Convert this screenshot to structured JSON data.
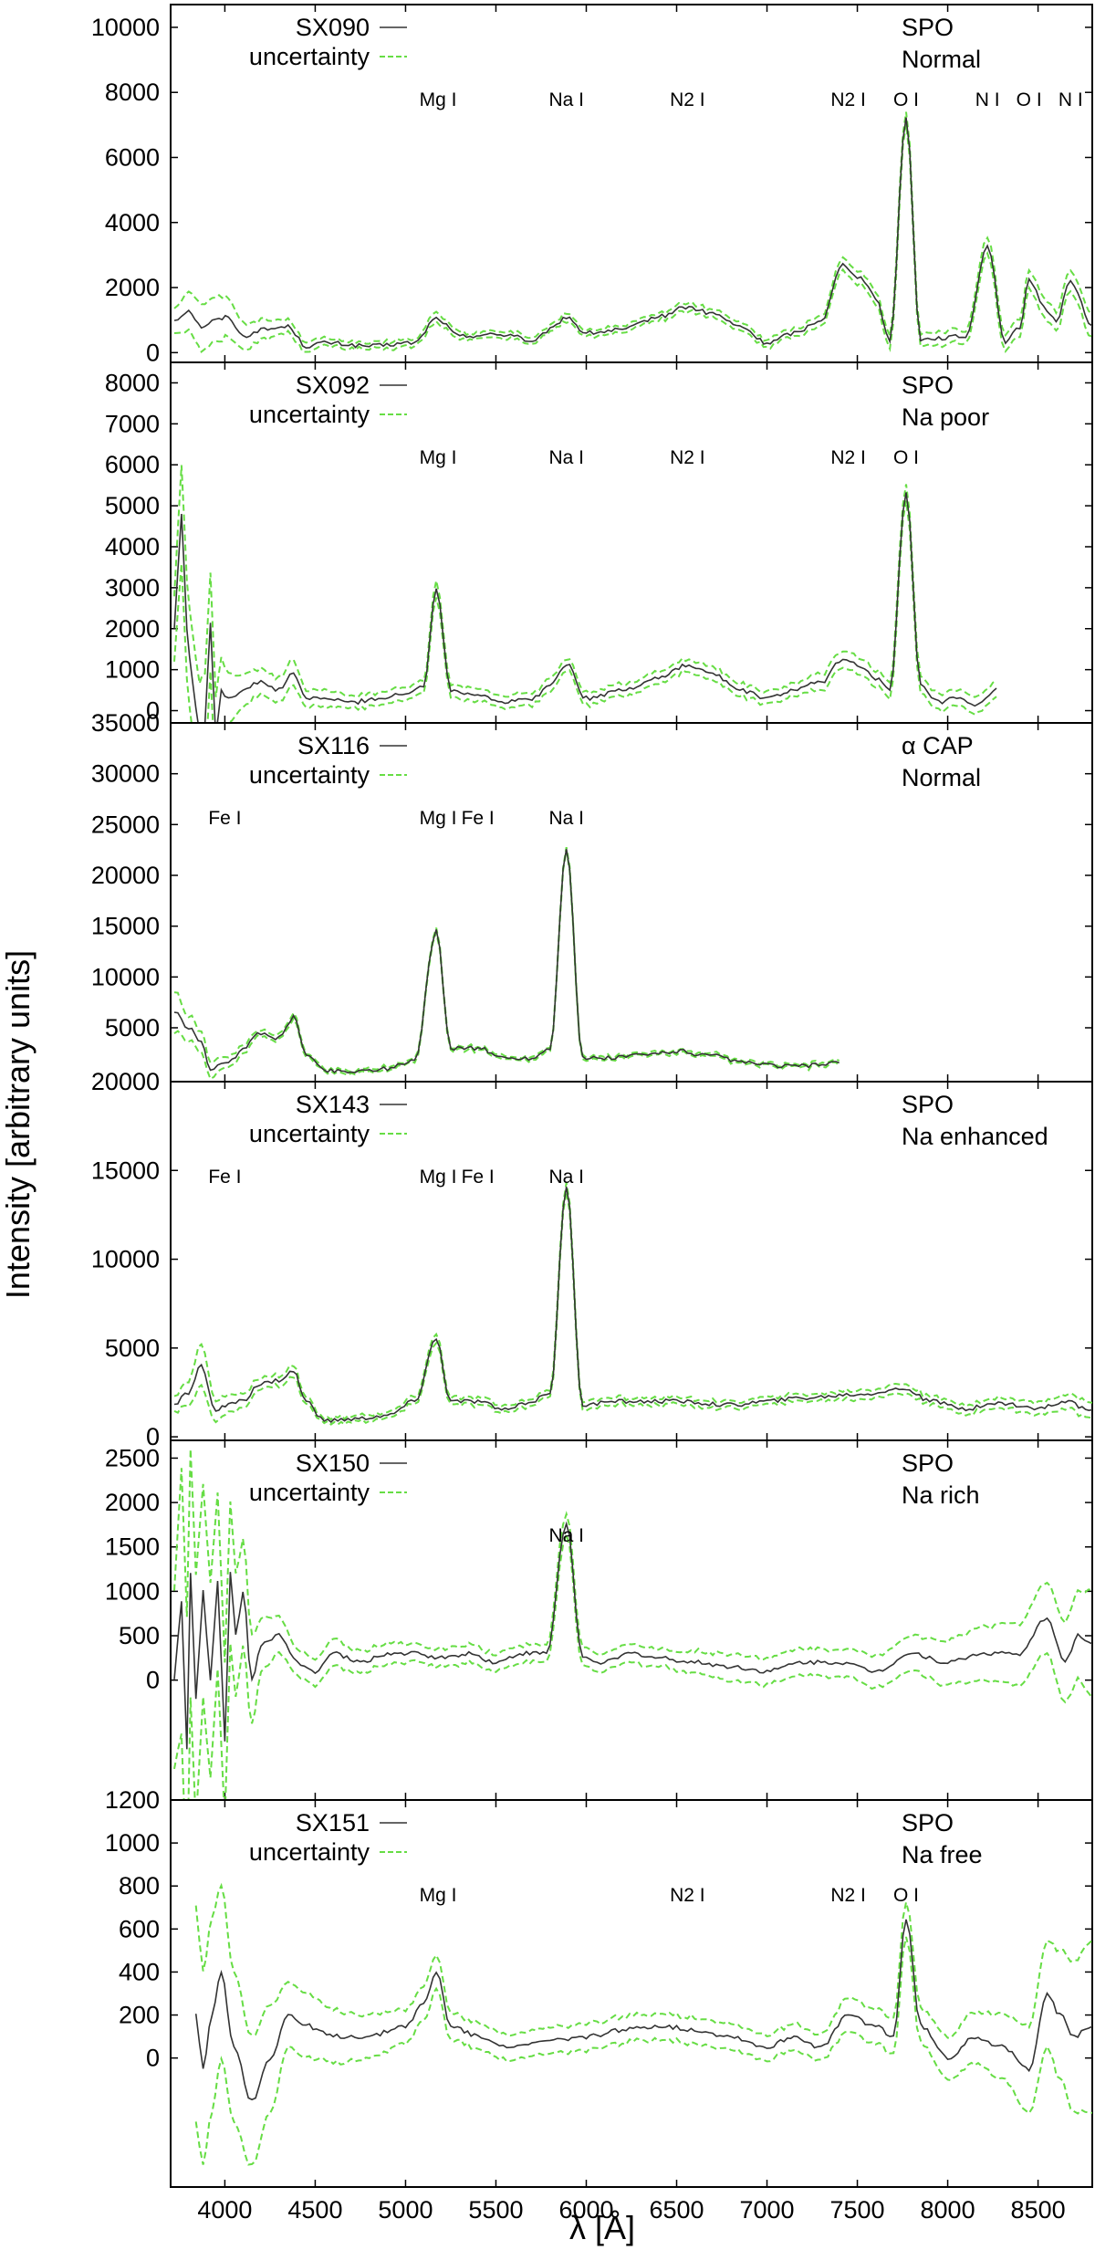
{
  "chart_data": {
    "type": "line",
    "xlabel": "λ [Å]",
    "ylabel": "Intensity [arbitrary units]",
    "xlim": [
      3700,
      8800
    ],
    "xticks": [
      4000,
      4500,
      5000,
      5500,
      6000,
      6500,
      7000,
      7500,
      8000,
      8500
    ],
    "colors": {
      "spectrum": "#333333",
      "uncertainty": "#66dd44",
      "frame": "#000000"
    },
    "panels": [
      {
        "id": "SX090",
        "series": [
          {
            "name": "SX090"
          },
          {
            "name": "uncertainty"
          }
        ],
        "tag": [
          "SPO",
          "Normal"
        ],
        "ylim": [
          -300,
          10700
        ],
        "yticks": [
          0,
          2000,
          4000,
          6000,
          8000,
          10000
        ],
        "line_labels": [
          {
            "x": 5180,
            "text": "Mg I"
          },
          {
            "x": 5890,
            "text": "Na I"
          },
          {
            "x": 6560,
            "text": "N2 I"
          },
          {
            "x": 7450,
            "text": "N2 I"
          },
          {
            "x": 7770,
            "text": "O I"
          },
          {
            "x": 8220,
            "text": "N I"
          },
          {
            "x": 8450,
            "text": "O I"
          },
          {
            "x": 8680,
            "text": "N I"
          }
        ],
        "x": [
          3720,
          3800,
          3870,
          3950,
          4020,
          4100,
          4200,
          4350,
          4450,
          4550,
          4800,
          5050,
          5170,
          5300,
          5450,
          5600,
          5700,
          5800,
          5890,
          6000,
          6200,
          6400,
          6550,
          6700,
          6850,
          7000,
          7150,
          7300,
          7420,
          7520,
          7600,
          7680,
          7770,
          7850,
          7950,
          8100,
          8220,
          8320,
          8400,
          8450,
          8550,
          8600,
          8680,
          8800
        ],
        "value": [
          1000,
          1300,
          800,
          1000,
          1100,
          500,
          700,
          800,
          200,
          300,
          200,
          300,
          1050,
          500,
          550,
          550,
          300,
          700,
          1100,
          600,
          700,
          1100,
          1400,
          1200,
          800,
          300,
          600,
          1000,
          2700,
          2300,
          1700,
          400,
          7200,
          400,
          450,
          500,
          3300,
          300,
          800,
          2200,
          1300,
          1000,
          2200,
          800
        ],
        "error": [
          400,
          600,
          700,
          700,
          600,
          400,
          300,
          200,
          150,
          120,
          100,
          100,
          150,
          100,
          100,
          100,
          100,
          100,
          120,
          100,
          100,
          100,
          120,
          120,
          120,
          120,
          120,
          150,
          200,
          200,
          200,
          200,
          200,
          200,
          200,
          200,
          250,
          250,
          250,
          300,
          300,
          300,
          300,
          350
        ]
      },
      {
        "id": "SX092",
        "series": [
          {
            "name": "SX092"
          },
          {
            "name": "uncertainty"
          }
        ],
        "tag": [
          "SPO",
          "Na poor"
        ],
        "ylim": [
          -300,
          8500
        ],
        "yticks": [
          0,
          1000,
          2000,
          3000,
          4000,
          5000,
          6000,
          7000,
          8000
        ],
        "line_labels": [
          {
            "x": 5180,
            "text": "Mg I"
          },
          {
            "x": 5890,
            "text": "Na I"
          },
          {
            "x": 6560,
            "text": "N2 I"
          },
          {
            "x": 7450,
            "text": "N2 I"
          },
          {
            "x": 7770,
            "text": "O I"
          }
        ],
        "x": [
          3720,
          3760,
          3790,
          3820,
          3860,
          3890,
          3920,
          3950,
          3980,
          4020,
          4100,
          4200,
          4300,
          4380,
          4450,
          4550,
          4700,
          4850,
          5000,
          5100,
          5170,
          5250,
          5400,
          5550,
          5700,
          5800,
          5890,
          6000,
          6200,
          6400,
          6550,
          6700,
          6850,
          7000,
          7150,
          7300,
          7420,
          7520,
          7600,
          7680,
          7770,
          7850,
          7950,
          8050,
          8150,
          8270
        ],
        "value": [
          2000,
          4800,
          2000,
          700,
          -500,
          -300,
          2100,
          -600,
          500,
          300,
          500,
          700,
          500,
          900,
          300,
          300,
          200,
          300,
          400,
          600,
          3000,
          500,
          400,
          200,
          300,
          600,
          1150,
          300,
          500,
          800,
          1100,
          900,
          500,
          300,
          500,
          700,
          1250,
          1100,
          800,
          500,
          5300,
          600,
          200,
          300,
          100,
          500
        ],
        "error": [
          800,
          1200,
          1200,
          1200,
          1200,
          1200,
          1200,
          1000,
          800,
          600,
          400,
          300,
          300,
          300,
          200,
          200,
          150,
          150,
          150,
          150,
          200,
          150,
          150,
          150,
          150,
          150,
          150,
          150,
          150,
          150,
          150,
          150,
          150,
          150,
          150,
          200,
          200,
          200,
          200,
          200,
          200,
          200,
          200,
          200,
          200,
          200
        ]
      },
      {
        "id": "SX116",
        "series": [
          {
            "name": "SX116"
          },
          {
            "name": "uncertainty"
          }
        ],
        "tag": [
          "α CAP",
          "Normal"
        ],
        "ylim": [
          -300,
          35000
        ],
        "yticks": [
          5000,
          10000,
          15000,
          20000,
          25000,
          30000,
          35000
        ],
        "line_labels": [
          {
            "x": 4000,
            "text": "Fe I"
          },
          {
            "x": 5180,
            "text": "Mg I"
          },
          {
            "x": 5400,
            "text": "Fe I"
          },
          {
            "x": 5890,
            "text": "Na I"
          }
        ],
        "x": [
          3720,
          3800,
          3870,
          3920,
          3960,
          4020,
          4100,
          4200,
          4300,
          4380,
          4450,
          4550,
          4700,
          4900,
          5050,
          5170,
          5250,
          5400,
          5550,
          5700,
          5800,
          5890,
          5980,
          6100,
          6300,
          6500,
          6700,
          6900,
          7100,
          7250,
          7400
        ],
        "value": [
          6500,
          5000,
          3500,
          1000,
          1200,
          1500,
          3000,
          4500,
          4000,
          6000,
          2500,
          800,
          700,
          1000,
          1800,
          14500,
          3000,
          3000,
          2000,
          2000,
          3000,
          22700,
          2000,
          2000,
          2300,
          2700,
          2200,
          1500,
          1200,
          1300,
          1600
        ],
        "error": [
          2000,
          1200,
          1000,
          800,
          700,
          500,
          400,
          300,
          300,
          300,
          200,
          150,
          150,
          150,
          150,
          200,
          150,
          150,
          150,
          150,
          150,
          200,
          150,
          150,
          150,
          150,
          150,
          150,
          150,
          150,
          150
        ]
      },
      {
        "id": "SX143",
        "series": [
          {
            "name": "SX143"
          },
          {
            "name": "uncertainty"
          }
        ],
        "tag": [
          "SPO",
          "Na enhanced"
        ],
        "ylim": [
          -200,
          20000
        ],
        "yticks": [
          0,
          5000,
          10000,
          15000,
          20000
        ],
        "line_labels": [
          {
            "x": 4000,
            "text": "Fe I"
          },
          {
            "x": 5180,
            "text": "Mg I"
          },
          {
            "x": 5400,
            "text": "Fe I"
          },
          {
            "x": 5890,
            "text": "Na I"
          }
        ],
        "x": [
          3720,
          3800,
          3870,
          3950,
          4020,
          4100,
          4200,
          4300,
          4380,
          4450,
          4550,
          4700,
          4900,
          5050,
          5170,
          5250,
          5400,
          5550,
          5700,
          5800,
          5890,
          5980,
          6200,
          6500,
          6800,
          7000,
          7200,
          7500,
          7770,
          7900,
          8100,
          8300,
          8500,
          8650,
          8800
        ],
        "value": [
          1800,
          2500,
          4000,
          1500,
          1800,
          2000,
          3000,
          3200,
          3700,
          2000,
          900,
          1000,
          1200,
          2000,
          5500,
          2000,
          2000,
          1500,
          2000,
          2500,
          14000,
          1800,
          2000,
          2000,
          1800,
          2000,
          2200,
          2400,
          2700,
          2000,
          1600,
          1900,
          1600,
          2000,
          1400
        ],
        "error": [
          400,
          700,
          1200,
          600,
          500,
          400,
          300,
          300,
          300,
          200,
          150,
          150,
          150,
          200,
          250,
          200,
          200,
          200,
          200,
          200,
          250,
          200,
          200,
          200,
          200,
          200,
          200,
          250,
          250,
          250,
          250,
          300,
          350,
          400,
          450
        ]
      },
      {
        "id": "SX150",
        "series": [
          {
            "name": "SX150"
          },
          {
            "name": "uncertainty"
          }
        ],
        "tag": [
          "SPO",
          "Na rich"
        ],
        "ylim": [
          -1350,
          2700
        ],
        "yticks": [
          0,
          500,
          1000,
          1500,
          2000,
          2500
        ],
        "line_labels": [
          {
            "x": 5890,
            "text": "Na I"
          }
        ],
        "x": [
          3720,
          3760,
          3790,
          3810,
          3840,
          3880,
          3920,
          3960,
          4000,
          4030,
          4060,
          4100,
          4150,
          4200,
          4300,
          4400,
          4500,
          4600,
          4750,
          4900,
          5050,
          5200,
          5350,
          5500,
          5650,
          5780,
          5890,
          5980,
          6100,
          6250,
          6400,
          6600,
          6800,
          7000,
          7200,
          7400,
          7600,
          7800,
          8000,
          8200,
          8400,
          8550,
          8650,
          8720,
          8800
        ],
        "value": [
          0,
          900,
          -800,
          1200,
          -200,
          1000,
          0,
          1100,
          -700,
          1200,
          500,
          1000,
          0,
          400,
          500,
          200,
          100,
          300,
          200,
          300,
          300,
          250,
          300,
          200,
          300,
          300,
          1750,
          250,
          200,
          300,
          250,
          200,
          150,
          100,
          200,
          200,
          100,
          300,
          200,
          300,
          300,
          700,
          200,
          500,
          400
        ],
        "error": [
          1000,
          1500,
          1500,
          1400,
          1400,
          1200,
          1100,
          1000,
          900,
          800,
          700,
          600,
          500,
          300,
          200,
          150,
          150,
          150,
          120,
          120,
          100,
          100,
          100,
          100,
          100,
          100,
          120,
          100,
          100,
          100,
          100,
          120,
          150,
          150,
          150,
          150,
          180,
          200,
          250,
          300,
          350,
          400,
          450,
          500,
          600
        ]
      },
      {
        "id": "SX151",
        "series": [
          {
            "name": "SX151"
          },
          {
            "name": "uncertainty"
          }
        ],
        "tag": [
          "SPO",
          "Na free"
        ],
        "ylim": [
          -600,
          1200
        ],
        "yticks": [
          0,
          200,
          400,
          600,
          800,
          1000,
          1200
        ],
        "line_labels": [
          {
            "x": 5180,
            "text": "Mg I"
          },
          {
            "x": 6560,
            "text": "N2 I"
          },
          {
            "x": 7450,
            "text": "N2 I"
          },
          {
            "x": 7770,
            "text": "O I"
          }
        ],
        "x": [
          3840,
          3880,
          3930,
          3980,
          4050,
          4150,
          4250,
          4350,
          4450,
          4600,
          4800,
          5000,
          5100,
          5170,
          5250,
          5400,
          5600,
          5800,
          6000,
          6200,
          6400,
          6600,
          6800,
          7000,
          7150,
          7300,
          7450,
          7600,
          7700,
          7770,
          7850,
          8000,
          8150,
          8300,
          8450,
          8550,
          8620,
          8700,
          8800
        ],
        "value": [
          200,
          -50,
          200,
          400,
          50,
          -200,
          0,
          200,
          150,
          100,
          100,
          150,
          250,
          400,
          150,
          100,
          50,
          80,
          100,
          130,
          150,
          130,
          100,
          50,
          100,
          50,
          200,
          150,
          100,
          650,
          150,
          0,
          100,
          50,
          -50,
          300,
          200,
          100,
          150
        ],
        "error": [
          500,
          450,
          450,
          400,
          350,
          300,
          250,
          150,
          150,
          120,
          100,
          80,
          80,
          80,
          60,
          60,
          60,
          60,
          60,
          60,
          60,
          60,
          60,
          60,
          60,
          60,
          80,
          80,
          80,
          80,
          80,
          100,
          120,
          150,
          200,
          250,
          300,
          350,
          400
        ]
      }
    ]
  }
}
